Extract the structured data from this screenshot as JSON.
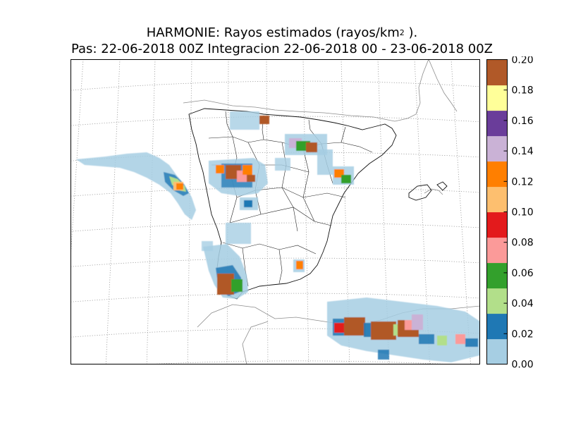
{
  "title": {
    "line1_prefix": "HARMONIE: Rayos estimados  (rayos/km",
    "line1_sup": "2",
    "line1_suffix": " ).",
    "line2": "Pas: 22-06-2018 00Z Integracion 22-06-2018 00 - 23-06-2018 00Z"
  },
  "colorbar": {
    "min": 0.0,
    "max": 0.2,
    "ticks": [
      "0.00",
      "0.02",
      "0.04",
      "0.06",
      "0.08",
      "0.10",
      "0.12",
      "0.14",
      "0.16",
      "0.18",
      "0.20"
    ],
    "colors": [
      "#a6cee3",
      "#1f78b4",
      "#b2df8a",
      "#33a02c",
      "#fb9a99",
      "#e31a1c",
      "#fdbf6f",
      "#ff7f00",
      "#cab2d6",
      "#6a3d9a",
      "#ffff99",
      "#b15928"
    ]
  },
  "map": {
    "region": "Iberian Peninsula",
    "graticule": "dotted",
    "land_line_color": "#000000",
    "coast_line_color": "#888888"
  }
}
